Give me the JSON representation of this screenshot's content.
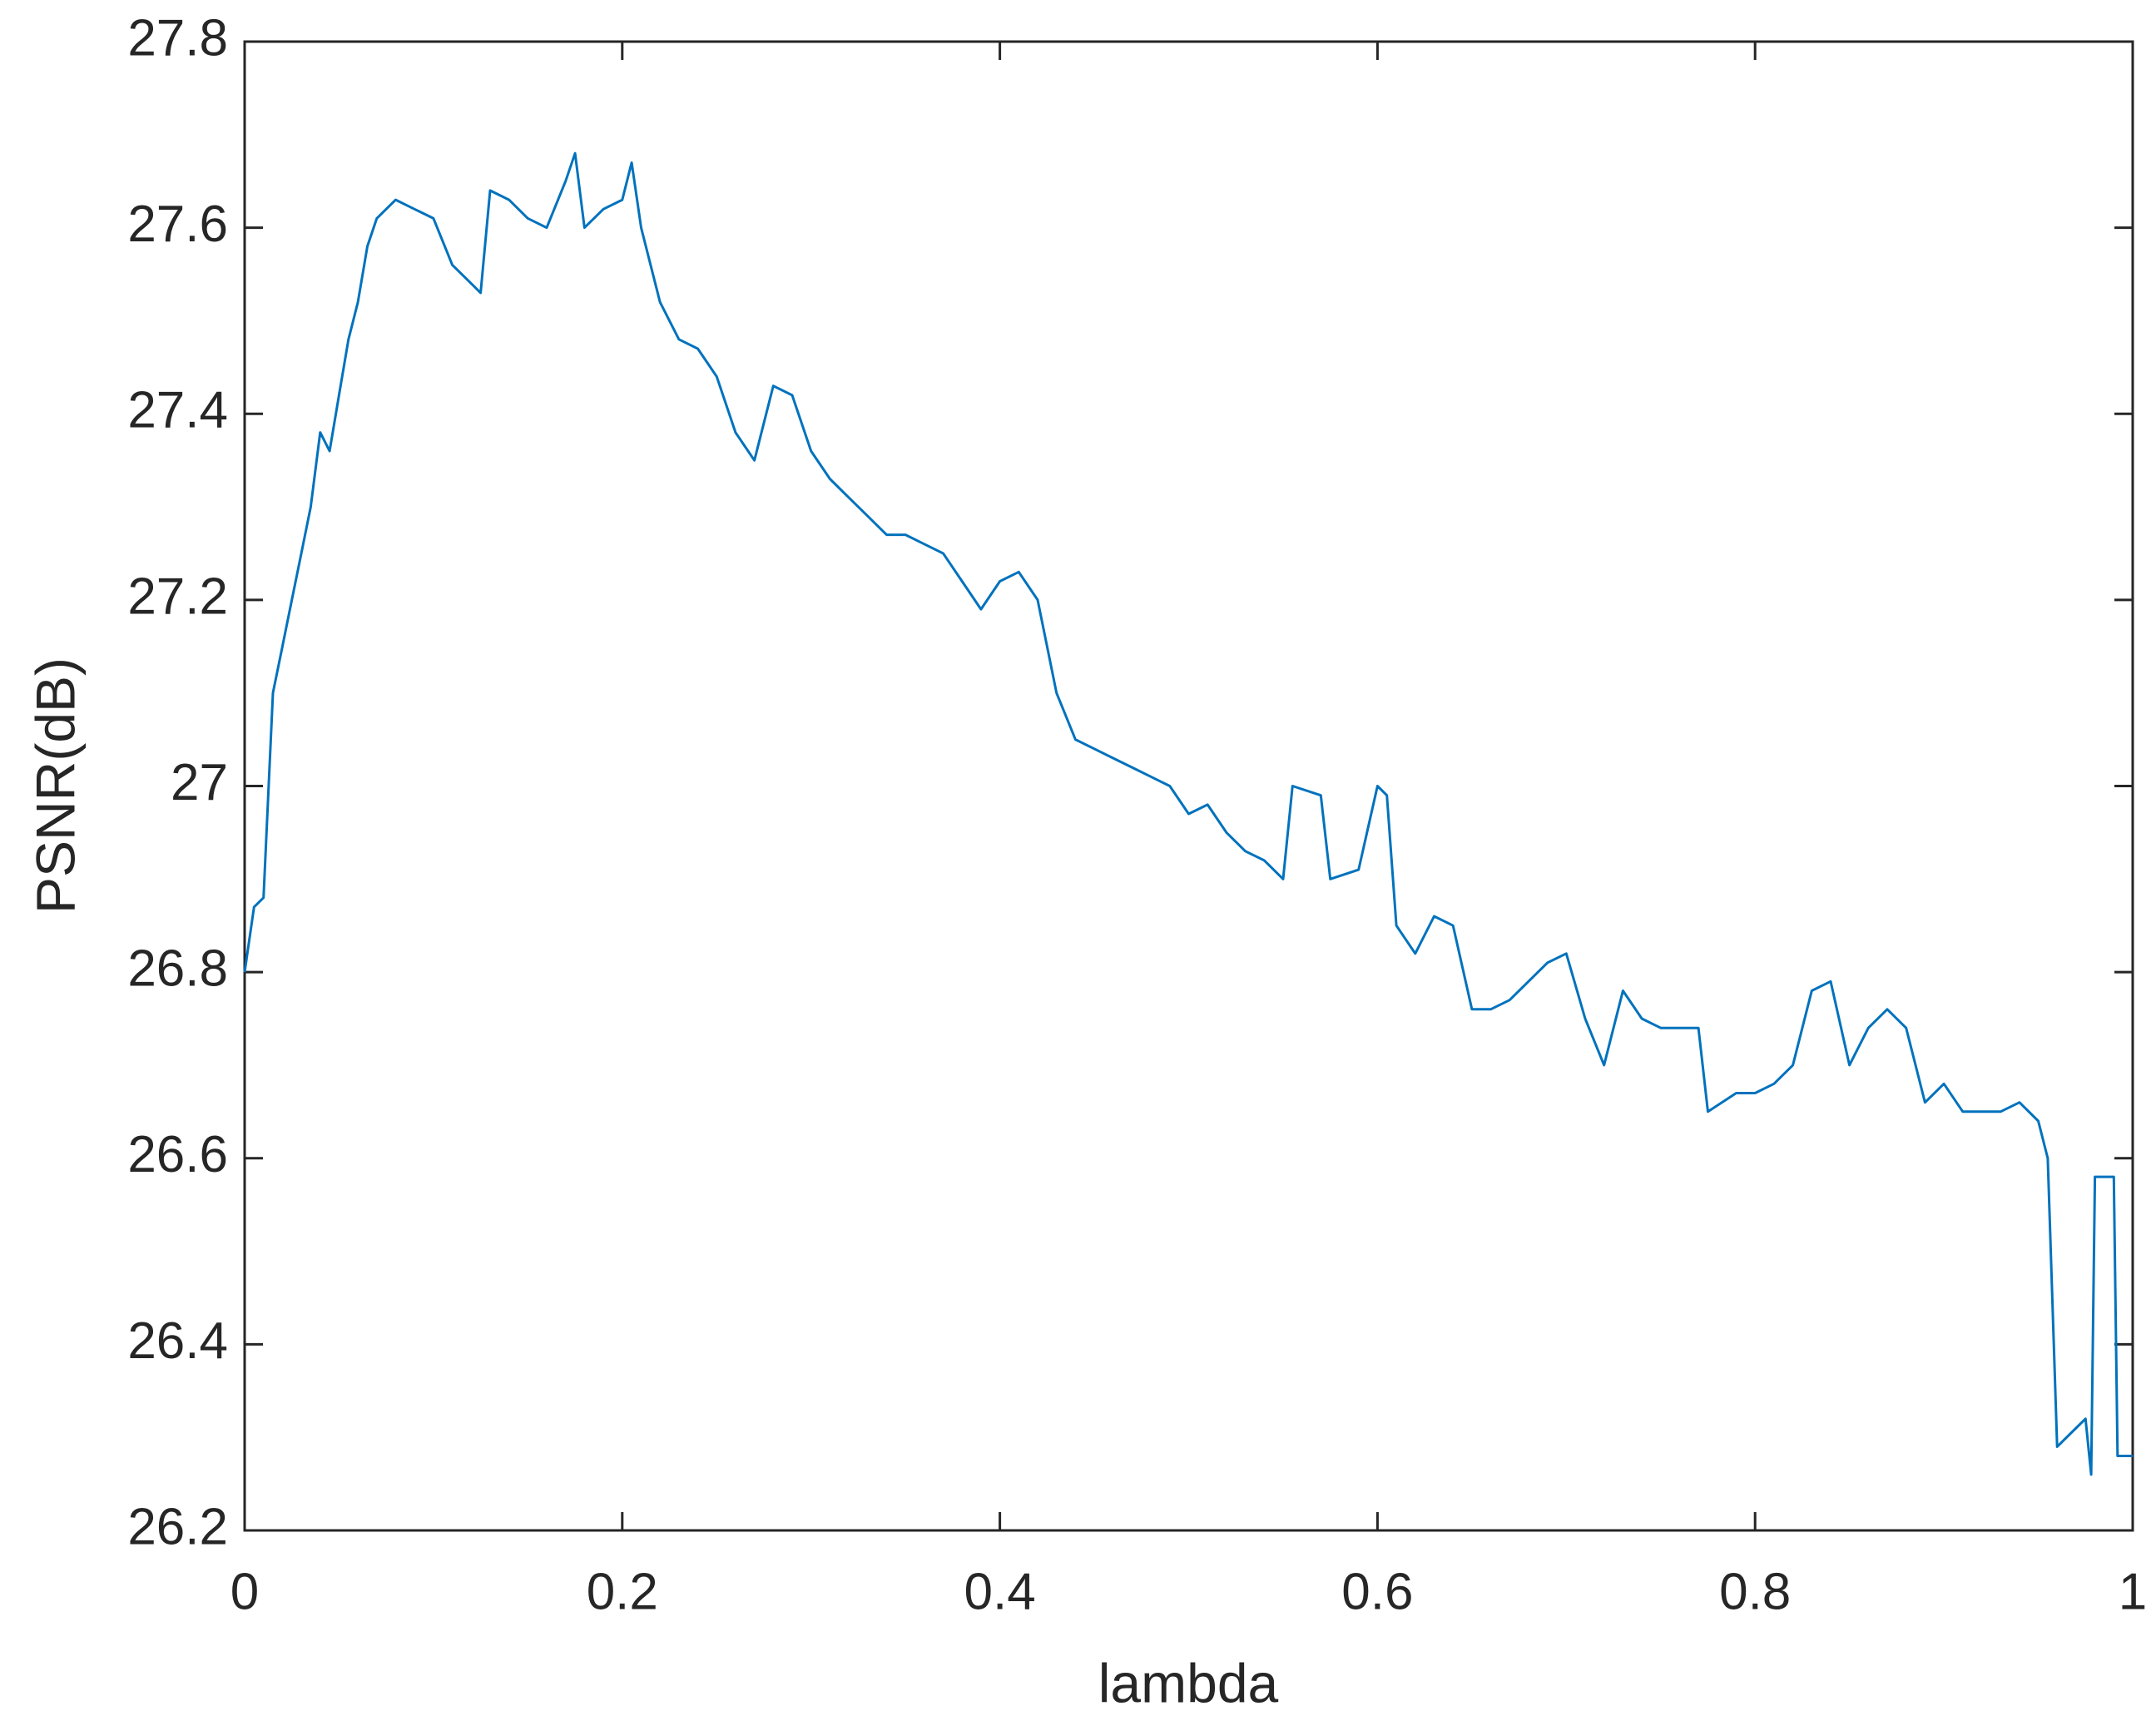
{
  "chart_data": {
    "type": "line",
    "xlabel": "lambda",
    "ylabel": "PSNR(dB)",
    "xlim": [
      0,
      1
    ],
    "xticks": [
      0,
      0.2,
      0.4,
      0.6,
      0.8,
      1
    ],
    "ylim": [
      26.2,
      27.8
    ],
    "yticks": [
      26.2,
      26.4,
      26.6,
      26.8,
      27,
      27.2,
      27.4,
      27.6,
      27.8
    ],
    "grid": false,
    "x": [
      0,
      0.005,
      0.01,
      0.015,
      0.02,
      0.025,
      0.03,
      0.035,
      0.04,
      0.045,
      0.05,
      0.055,
      0.06,
      0.065,
      0.07,
      0.08,
      0.09,
      0.1,
      0.11,
      0.12,
      0.125,
      0.13,
      0.14,
      0.15,
      0.16,
      0.17,
      0.175,
      0.18,
      0.19,
      0.2,
      0.205,
      0.21,
      0.22,
      0.23,
      0.24,
      0.25,
      0.26,
      0.27,
      0.28,
      0.29,
      0.3,
      0.31,
      0.32,
      0.33,
      0.34,
      0.35,
      0.36,
      0.37,
      0.38,
      0.39,
      0.4,
      0.41,
      0.42,
      0.43,
      0.44,
      0.45,
      0.46,
      0.47,
      0.48,
      0.49,
      0.5,
      0.51,
      0.52,
      0.53,
      0.54,
      0.55,
      0.555,
      0.57,
      0.575,
      0.59,
      0.6,
      0.605,
      0.61,
      0.62,
      0.63,
      0.64,
      0.65,
      0.66,
      0.67,
      0.68,
      0.69,
      0.7,
      0.71,
      0.72,
      0.73,
      0.74,
      0.75,
      0.76,
      0.77,
      0.775,
      0.79,
      0.8,
      0.81,
      0.82,
      0.83,
      0.84,
      0.85,
      0.86,
      0.87,
      0.88,
      0.89,
      0.9,
      0.91,
      0.92,
      0.93,
      0.94,
      0.95,
      0.955,
      0.96,
      0.97,
      0.975,
      0.978,
      0.98,
      0.99,
      0.992,
      1
    ],
    "series": [
      {
        "name": "PSNR",
        "color": "#0072bd",
        "values": [
          26.8,
          26.87,
          26.88,
          27.1,
          27.15,
          27.2,
          27.25,
          27.3,
          27.38,
          27.36,
          27.42,
          27.48,
          27.52,
          27.58,
          27.61,
          27.63,
          27.62,
          27.61,
          27.56,
          27.54,
          27.53,
          27.64,
          27.63,
          27.61,
          27.6,
          27.65,
          27.68,
          27.6,
          27.62,
          27.63,
          27.67,
          27.6,
          27.52,
          27.48,
          27.47,
          27.44,
          27.38,
          27.35,
          27.43,
          27.42,
          27.36,
          27.33,
          27.31,
          27.29,
          27.27,
          27.27,
          27.26,
          27.25,
          27.22,
          27.19,
          27.22,
          27.23,
          27.2,
          27.1,
          27.05,
          27.04,
          27.03,
          27.02,
          27.01,
          27.0,
          26.97,
          26.98,
          26.95,
          26.93,
          26.92,
          26.9,
          27.0,
          26.99,
          26.9,
          26.91,
          27.0,
          26.99,
          26.85,
          26.82,
          26.86,
          26.85,
          26.76,
          26.76,
          26.77,
          26.79,
          26.81,
          26.82,
          26.75,
          26.7,
          26.78,
          26.75,
          26.74,
          26.74,
          26.74,
          26.65,
          26.67,
          26.67,
          26.68,
          26.7,
          26.78,
          26.79,
          26.7,
          26.74,
          26.76,
          26.74,
          26.66,
          26.68,
          26.65,
          26.65,
          26.65,
          26.66,
          26.64,
          26.6,
          26.29,
          26.31,
          26.32,
          26.26,
          26.58,
          26.58,
          26.28,
          26.28
        ]
      }
    ]
  }
}
